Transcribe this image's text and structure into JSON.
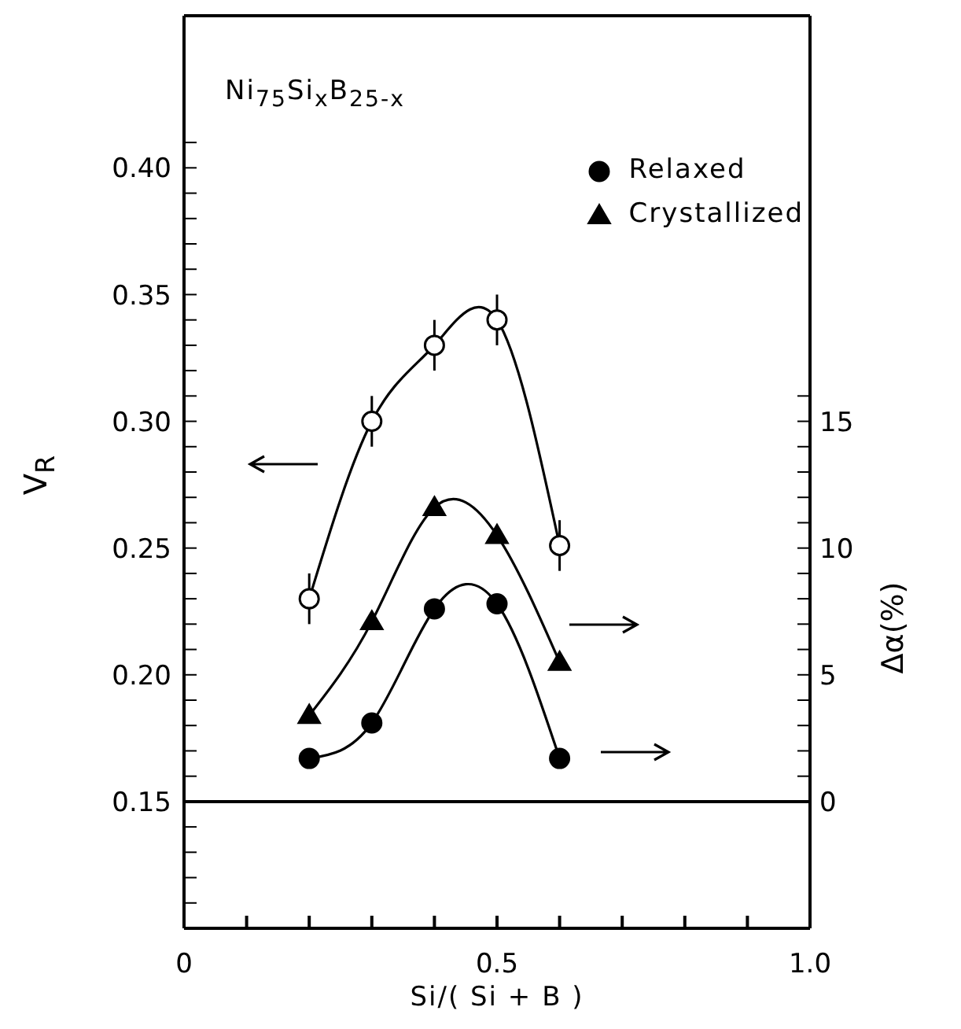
{
  "chart_data": {
    "type": "line",
    "xlabel": "Si/( Si + B )",
    "ylabel": "V$_{R}$",
    "y2label": "Δα(%)",
    "annotations": [
      "Ni$_{75}$Si$_{x}$B$_{25-x}$"
    ],
    "x": [
      0.2,
      0.3,
      0.4,
      0.5,
      0.6
    ],
    "series": [
      {
        "color": "#000000",
        "marker": "circle",
        "axis": "y",
        "values": [
          0.23,
          0.3,
          0.33,
          0.34,
          0.251
        ],
        "errors": [
          0.01,
          0.01,
          0.01,
          0.01,
          0.01
        ]
      },
      {
        "name": "Relaxed",
        "color": "#000000",
        "marker": "circle",
        "axis": "y2",
        "values": [
          1.7,
          3.1,
          7.6,
          7.8,
          1.7
        ]
      },
      {
        "name": "Crystallized",
        "color": "#000000",
        "marker": "triangle",
        "axis": "y2",
        "values": [
          3.4,
          7.1,
          11.6,
          10.5,
          5.5
        ]
      }
    ],
    "xlim": [
      0,
      1
    ],
    "xticks": [
      0,
      {
        "value": 0.1,
        "label": null
      },
      {
        "value": 0.2,
        "label": null
      },
      {
        "value": 0.3,
        "label": null
      },
      {
        "value": 0.4,
        "label": null
      },
      0.5,
      {
        "value": 0.6,
        "label": null
      },
      {
        "value": 0.7,
        "label": null
      },
      {
        "value": 0.8,
        "label": null
      },
      {
        "value": 0.9,
        "label": null
      },
      {
        "value": 1,
        "label": "1.0"
      }
    ],
    "ylim": [
      0.1,
      0.46
    ],
    "yticks": [
      {
        "value": 0.11,
        "label": null
      },
      {
        "value": 0.12,
        "label": null
      },
      {
        "value": 0.13,
        "label": null
      },
      {
        "value": 0.14,
        "label": null
      },
      0.15,
      {
        "value": 0.16,
        "label": null
      },
      {
        "value": 0.17,
        "label": null
      },
      {
        "value": 0.18,
        "label": null
      },
      {
        "value": 0.19,
        "label": null
      },
      {
        "value": 0.2,
        "label": "0.20"
      },
      {
        "value": 0.21,
        "label": null
      },
      {
        "value": 0.22,
        "label": null
      },
      {
        "value": 0.23,
        "label": null
      },
      {
        "value": 0.24,
        "label": null
      },
      0.25,
      {
        "value": 0.26,
        "label": null
      },
      {
        "value": 0.27,
        "label": null
      },
      {
        "value": 0.28,
        "label": null
      },
      {
        "value": 0.29,
        "label": null
      },
      {
        "value": 0.3,
        "label": "0.30"
      },
      {
        "value": 0.31,
        "label": null
      },
      {
        "value": 0.32,
        "label": null
      },
      {
        "value": 0.33,
        "label": null
      },
      {
        "value": 0.34,
        "label": null
      },
      0.35,
      {
        "value": 0.36,
        "label": null
      },
      {
        "value": 0.37,
        "label": null
      },
      {
        "value": 0.38,
        "label": null
      },
      {
        "value": 0.39,
        "label": null
      },
      {
        "value": 0.4,
        "label": "0.40"
      },
      {
        "value": 0.41,
        "label": null
      }
    ],
    "y2lim": [
      -5,
      31
    ],
    "y2ticks": [
      0,
      {
        "value": 1,
        "label": null
      },
      {
        "value": 2,
        "label": null
      },
      {
        "value": 3,
        "label": null
      },
      {
        "value": 4,
        "label": null
      },
      5,
      {
        "value": 6,
        "label": null
      },
      {
        "value": 7,
        "label": null
      },
      {
        "value": 8,
        "label": null
      },
      {
        "value": 9,
        "label": null
      },
      10,
      {
        "value": 11,
        "label": null
      },
      {
        "value": 12,
        "label": null
      },
      {
        "value": 13,
        "label": null
      },
      {
        "value": 14,
        "label": null
      },
      15,
      {
        "value": 16,
        "label": null
      }
    ],
    "ref_lines": [
      {
        "axis": "y",
        "value": 0.15,
        "color": "#000000"
      }
    ],
    "line_style": "solid",
    "grid": false,
    "legend": "top right"
  }
}
